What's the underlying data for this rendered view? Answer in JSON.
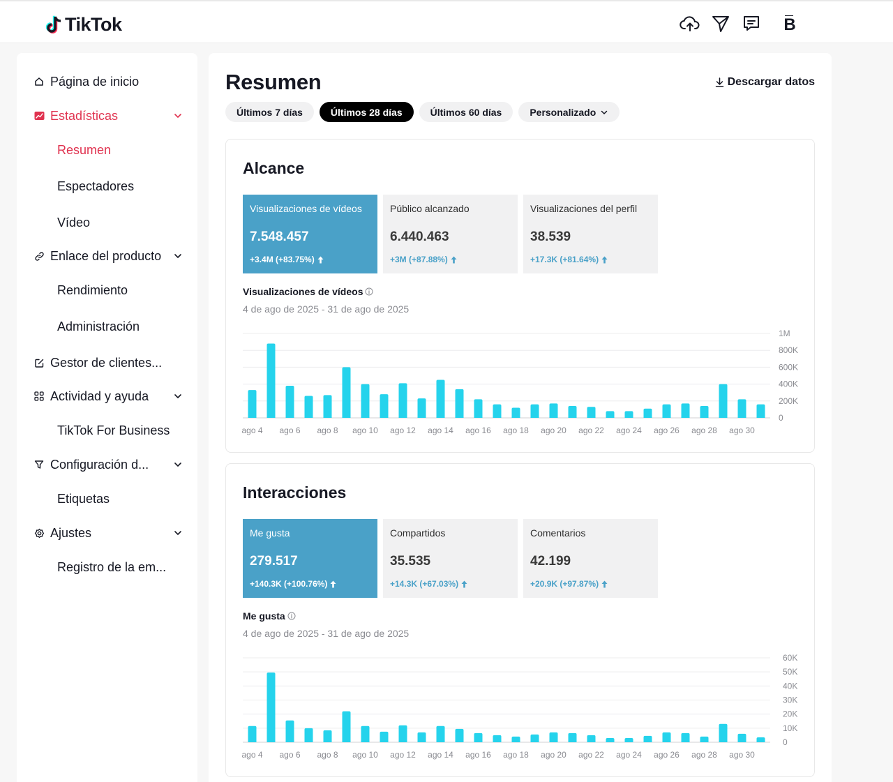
{
  "app": {
    "logo_text": "TikTok",
    "avatar_letter": "B"
  },
  "header": {
    "icons": [
      "upload-icon",
      "send-icon",
      "message-icon"
    ]
  },
  "sidebar": {
    "items": [
      {
        "label": "Página de inicio",
        "icon": "home-icon"
      },
      {
        "label": "Estadísticas",
        "icon": "analytics-icon",
        "active": true
      },
      {
        "label": "Resumen",
        "sub": true,
        "active": true
      },
      {
        "label": "Espectadores",
        "sub": true
      },
      {
        "label": "Vídeo",
        "sub": true
      },
      {
        "label": "Enlace del producto",
        "icon": "link-icon"
      },
      {
        "label": "Rendimiento",
        "sub": true
      },
      {
        "label": "Administración",
        "sub": true
      },
      {
        "label": "Gestor de clientes...",
        "icon": "edit-icon"
      },
      {
        "label": "Actividad y ayuda",
        "icon": "grid-icon"
      },
      {
        "label": "TikTok For Business",
        "sub": true
      },
      {
        "label": "Configuración d...",
        "icon": "filter-icon"
      },
      {
        "label": "Etiquetas",
        "sub": true
      },
      {
        "label": "Ajustes",
        "icon": "gear-icon"
      },
      {
        "label": "Registro de la em...",
        "sub": true
      }
    ]
  },
  "main": {
    "title": "Resumen",
    "download_label": "Descargar datos",
    "pills": [
      "Últimos 7 días",
      "Últimos 28 días",
      "Últimos 60 días",
      "Personalizado"
    ],
    "active_pill": 1
  },
  "reach": {
    "title": "Alcance",
    "metrics": [
      {
        "label": "Visualizaciones de vídeos",
        "value": "7.548.457",
        "delta": "+3.4M  (+83.75%)"
      },
      {
        "label": "Público alcanzado",
        "value": "6.440.463",
        "delta": "+3M  (+87.88%)"
      },
      {
        "label": "Visualizaciones del perfil",
        "value": "38.539",
        "delta": "+17.3K  (+81.64%)"
      }
    ],
    "chart_title": "Visualizaciones de vídeos",
    "chart_range": "4 de ago de 2025 - 31 de ago de 2025"
  },
  "engagement": {
    "title": "Interacciones",
    "metrics": [
      {
        "label": "Me gusta",
        "value": "279.517",
        "delta": "+140.3K  (+100.76%)"
      },
      {
        "label": "Compartidos",
        "value": "35.535",
        "delta": "+14.3K  (+67.03%)"
      },
      {
        "label": "Comentarios",
        "value": "42.199",
        "delta": "+20.9K  (+97.87%)"
      }
    ],
    "chart_title": "Me gusta",
    "chart_range": "4 de ago de 2025 - 31 de ago de 2025"
  },
  "colors": {
    "accent_red": "#e0324f",
    "metric_blue": "#4aa1c8",
    "bar_cyan": "#25d3ec"
  },
  "chart_data": [
    {
      "type": "bar",
      "categories": [
        "ago 4",
        "ago 5",
        "ago 6",
        "ago 7",
        "ago 8",
        "ago 9",
        "ago 10",
        "ago 11",
        "ago 12",
        "ago 13",
        "ago 14",
        "ago 15",
        "ago 16",
        "ago 17",
        "ago 18",
        "ago 19",
        "ago 20",
        "ago 21",
        "ago 22",
        "ago 23",
        "ago 24",
        "ago 25",
        "ago 26",
        "ago 27",
        "ago 28",
        "ago 29",
        "ago 30",
        "ago 31"
      ],
      "x_tick_labels": [
        "ago 4",
        "ago 6",
        "ago 8",
        "ago 10",
        "ago 12",
        "ago 14",
        "ago 16",
        "ago 18",
        "ago 20",
        "ago 22",
        "ago 24",
        "ago 26",
        "ago 28",
        "ago 30"
      ],
      "values": [
        330000,
        880000,
        380000,
        260000,
        270000,
        600000,
        400000,
        280000,
        410000,
        230000,
        450000,
        340000,
        220000,
        160000,
        120000,
        160000,
        170000,
        140000,
        130000,
        80000,
        80000,
        110000,
        160000,
        170000,
        140000,
        400000,
        220000,
        160000
      ],
      "y_ticks": [
        "0",
        "200K",
        "400K",
        "600K",
        "800K",
        "1M"
      ],
      "ylim": [
        0,
        1000000
      ]
    },
    {
      "type": "bar",
      "categories": [
        "ago 4",
        "ago 5",
        "ago 6",
        "ago 7",
        "ago 8",
        "ago 9",
        "ago 10",
        "ago 11",
        "ago 12",
        "ago 13",
        "ago 14",
        "ago 15",
        "ago 16",
        "ago 17",
        "ago 18",
        "ago 19",
        "ago 20",
        "ago 21",
        "ago 22",
        "ago 23",
        "ago 24",
        "ago 25",
        "ago 26",
        "ago 27",
        "ago 28",
        "ago 29",
        "ago 30",
        "ago 31"
      ],
      "x_tick_labels": [
        "ago 4",
        "ago 6",
        "ago 8",
        "ago 10",
        "ago 12",
        "ago 14",
        "ago 16",
        "ago 18",
        "ago 20",
        "ago 22",
        "ago 24",
        "ago 26",
        "ago 28",
        "ago 30"
      ],
      "values": [
        11500,
        49500,
        15500,
        10000,
        8500,
        22000,
        11500,
        7500,
        12000,
        7000,
        11500,
        9500,
        6500,
        5000,
        4000,
        5500,
        7000,
        6500,
        5000,
        3000,
        3000,
        4500,
        7000,
        6500,
        4000,
        13000,
        6000,
        3500
      ],
      "y_ticks": [
        "0",
        "10K",
        "20K",
        "30K",
        "40K",
        "50K",
        "60K"
      ],
      "ylim": [
        0,
        60000
      ]
    }
  ]
}
